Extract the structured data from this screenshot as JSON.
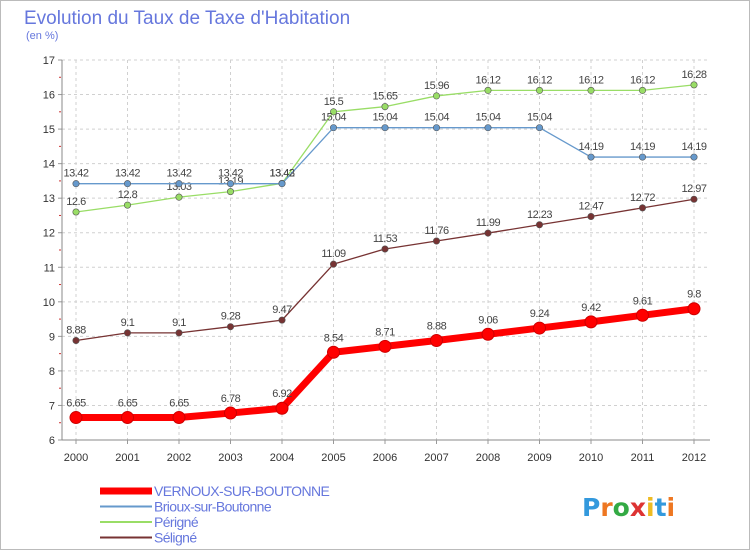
{
  "chart_data": {
    "type": "line",
    "title": "Evolution du Taux de Taxe d'Habitation",
    "subtitle": "(en %)",
    "x": [
      "2000",
      "2001",
      "2002",
      "2003",
      "2004",
      "2005",
      "2006",
      "2007",
      "2008",
      "2009",
      "2010",
      "2011",
      "2012"
    ],
    "ylim": [
      6,
      17
    ],
    "yticks": [
      "6",
      "7",
      "8",
      "9",
      "10",
      "11",
      "12",
      "13",
      "14",
      "15",
      "16",
      "17"
    ],
    "grid": true,
    "legend_position": "bottom-left",
    "series": [
      {
        "name": "VERNOUX-SUR-BOUTONNE",
        "color": "#ff0000",
        "values": [
          6.65,
          6.65,
          6.65,
          6.78,
          6.92,
          8.54,
          8.71,
          8.88,
          9.06,
          9.24,
          9.42,
          9.61,
          9.8
        ],
        "labels": [
          "6.65",
          "6.65",
          "6.65",
          "6.78",
          "6.92",
          "8.54",
          "8.71",
          "8.88",
          "9.06",
          "9.24",
          "9.42",
          "9.61",
          "9.8"
        ]
      },
      {
        "name": "Brioux-sur-Boutonne",
        "color": "#6699cc",
        "values": [
          13.42,
          13.42,
          13.42,
          13.42,
          13.42,
          15.04,
          15.04,
          15.04,
          15.04,
          15.04,
          14.19,
          14.19,
          14.19
        ],
        "labels": [
          "13.42",
          "13.42",
          "13.42",
          "13.42",
          "13.42",
          "15.04",
          "15.04",
          "15.04",
          "15.04",
          "15.04",
          "14.19",
          "14.19",
          "14.19"
        ]
      },
      {
        "name": "Périgné",
        "color": "#99dd66",
        "values": [
          12.6,
          12.8,
          13.03,
          13.19,
          13.43,
          15.5,
          15.65,
          15.96,
          16.12,
          16.12,
          16.12,
          16.12,
          16.28
        ],
        "labels": [
          "12.6",
          "12.8",
          "13.03",
          "13.19",
          "13.43",
          "15.5",
          "15.65",
          "15.96",
          "16.12",
          "16.12",
          "16.12",
          "16.12",
          "16.28"
        ]
      },
      {
        "name": "Séligné",
        "color": "#773333",
        "values": [
          8.88,
          9.1,
          9.1,
          9.28,
          9.47,
          11.09,
          11.53,
          11.76,
          11.99,
          12.23,
          12.47,
          12.72,
          12.97
        ],
        "labels": [
          "8.88",
          "9.1",
          "9.1",
          "9.28",
          "9.47",
          "11.09",
          "11.53",
          "11.76",
          "11.99",
          "12.23",
          "12.47",
          "12.72",
          "12.97"
        ]
      }
    ]
  },
  "logo": {
    "text": "Proxiti"
  }
}
